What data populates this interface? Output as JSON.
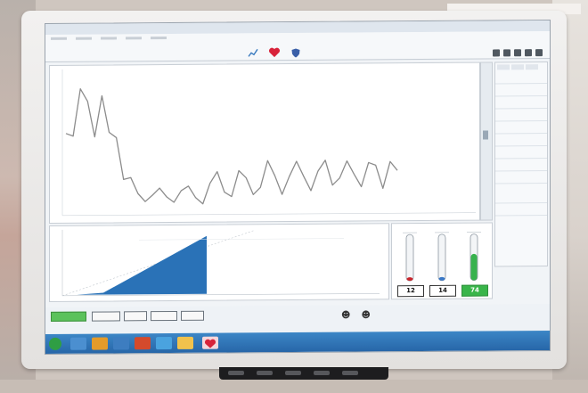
{
  "window": {
    "title": ""
  },
  "toolbar": {
    "icons": [
      "graph-icon",
      "heart-icon",
      "shield-icon"
    ],
    "heart_color": "#d8233a"
  },
  "graph": {
    "line_color": "#8c8c8c",
    "trace": [
      118,
      121,
      68,
      82,
      122,
      76,
      117,
      123,
      170,
      168,
      186,
      195,
      188,
      180,
      190,
      196,
      183,
      178,
      191,
      198,
      175,
      162,
      185,
      190,
      161,
      169,
      188,
      180,
      150,
      167,
      188,
      168,
      151,
      168,
      184,
      162,
      150,
      178,
      170,
      151,
      166,
      180,
      153,
      156,
      182,
      152,
      162
    ]
  },
  "meters": {
    "readouts": [
      {
        "value": "12",
        "highlight": false
      },
      {
        "value": "14",
        "highlight": false
      },
      {
        "value": "74",
        "highlight": true
      }
    ],
    "colors": [
      "#c9252c",
      "#3a78c7",
      "#37b24d"
    ],
    "levels": [
      0.05,
      0.08,
      0.62
    ]
  },
  "ramp": {
    "fill_color": "#2a72b7"
  },
  "accent": "#2766a8"
}
